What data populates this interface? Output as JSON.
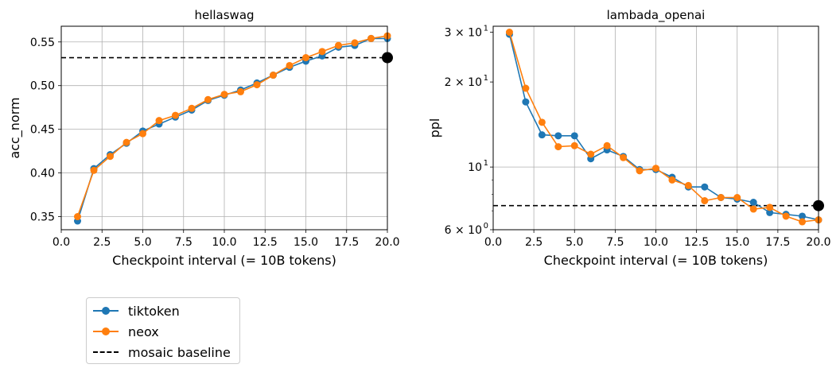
{
  "chart_data": [
    {
      "type": "line",
      "title": "hellaswag",
      "xlabel": "Checkpoint interval (= 10B tokens)",
      "ylabel": "acc_norm",
      "xlim": [
        0,
        20
      ],
      "ylim": [
        0.335,
        0.568
      ],
      "yscale": "linear",
      "xticks": [
        "0.0",
        "2.5",
        "5.0",
        "7.5",
        "10.0",
        "12.5",
        "15.0",
        "17.5",
        "20.0"
      ],
      "yticks": [
        "0.35",
        "0.40",
        "0.45",
        "0.50",
        "0.55"
      ],
      "grid": true,
      "x": [
        1,
        2,
        3,
        4,
        5,
        6,
        7,
        8,
        9,
        10,
        11,
        12,
        13,
        14,
        15,
        16,
        17,
        18,
        19,
        20
      ],
      "series": [
        {
          "name": "tiktoken",
          "color": "#1f77b4",
          "values": [
            0.345,
            0.405,
            0.421,
            0.434,
            0.448,
            0.456,
            0.464,
            0.472,
            0.483,
            0.489,
            0.495,
            0.503,
            0.512,
            0.521,
            0.528,
            0.534,
            0.544,
            0.546,
            0.554,
            0.554
          ]
        },
        {
          "name": "neox",
          "color": "#ff7f0e",
          "values": [
            0.35,
            0.403,
            0.419,
            0.435,
            0.445,
            0.46,
            0.466,
            0.474,
            0.484,
            0.49,
            0.493,
            0.501,
            0.512,
            0.523,
            0.532,
            0.539,
            0.546,
            0.549,
            0.554,
            0.557
          ]
        }
      ],
      "baseline": {
        "name": "mosaic baseline",
        "value": 0.532,
        "marker_x": 20
      }
    },
    {
      "type": "line",
      "title": "lambada_openai",
      "xlabel": "Checkpoint interval (= 10B tokens)",
      "ylabel": "ppl",
      "xlim": [
        0,
        20
      ],
      "ylim": [
        6.0,
        31.5
      ],
      "yscale": "log",
      "xticks": [
        "0.0",
        "2.5",
        "5.0",
        "7.5",
        "10.0",
        "12.5",
        "15.0",
        "17.5",
        "20.0"
      ],
      "yticks": [
        {
          "value": 30,
          "base": "3 × 10",
          "exp": "1"
        },
        {
          "value": 20,
          "base": "2 × 10",
          "exp": "1"
        },
        {
          "value": 10,
          "base": "10",
          "exp": "1"
        },
        {
          "value": 6,
          "base": "6 × 10",
          "exp": "0"
        }
      ],
      "grid": true,
      "x": [
        1,
        2,
        3,
        4,
        5,
        6,
        7,
        8,
        9,
        10,
        11,
        12,
        13,
        14,
        15,
        16,
        17,
        18,
        19,
        20
      ],
      "series": [
        {
          "name": "tiktoken",
          "color": "#1f77b4",
          "values": [
            29.5,
            17.0,
            13.0,
            12.9,
            12.9,
            10.7,
            11.5,
            10.9,
            9.8,
            9.8,
            9.2,
            8.5,
            8.5,
            7.8,
            7.7,
            7.5,
            6.9,
            6.8,
            6.7,
            6.5
          ]
        },
        {
          "name": "neox",
          "color": "#ff7f0e",
          "values": [
            30.0,
            19.0,
            14.4,
            11.8,
            11.9,
            11.1,
            11.9,
            10.8,
            9.7,
            9.9,
            9.0,
            8.6,
            7.6,
            7.8,
            7.8,
            7.1,
            7.2,
            6.7,
            6.4,
            6.5
          ]
        }
      ],
      "baseline": {
        "name": "mosaic baseline",
        "value": 7.3,
        "marker_x": 20
      }
    }
  ],
  "legend": {
    "items": [
      {
        "label": "tiktoken",
        "color": "#1f77b4",
        "style": "line-marker"
      },
      {
        "label": "neox",
        "color": "#ff7f0e",
        "style": "line-marker"
      },
      {
        "label": "mosaic baseline",
        "color": "#000000",
        "style": "dashed"
      }
    ]
  }
}
